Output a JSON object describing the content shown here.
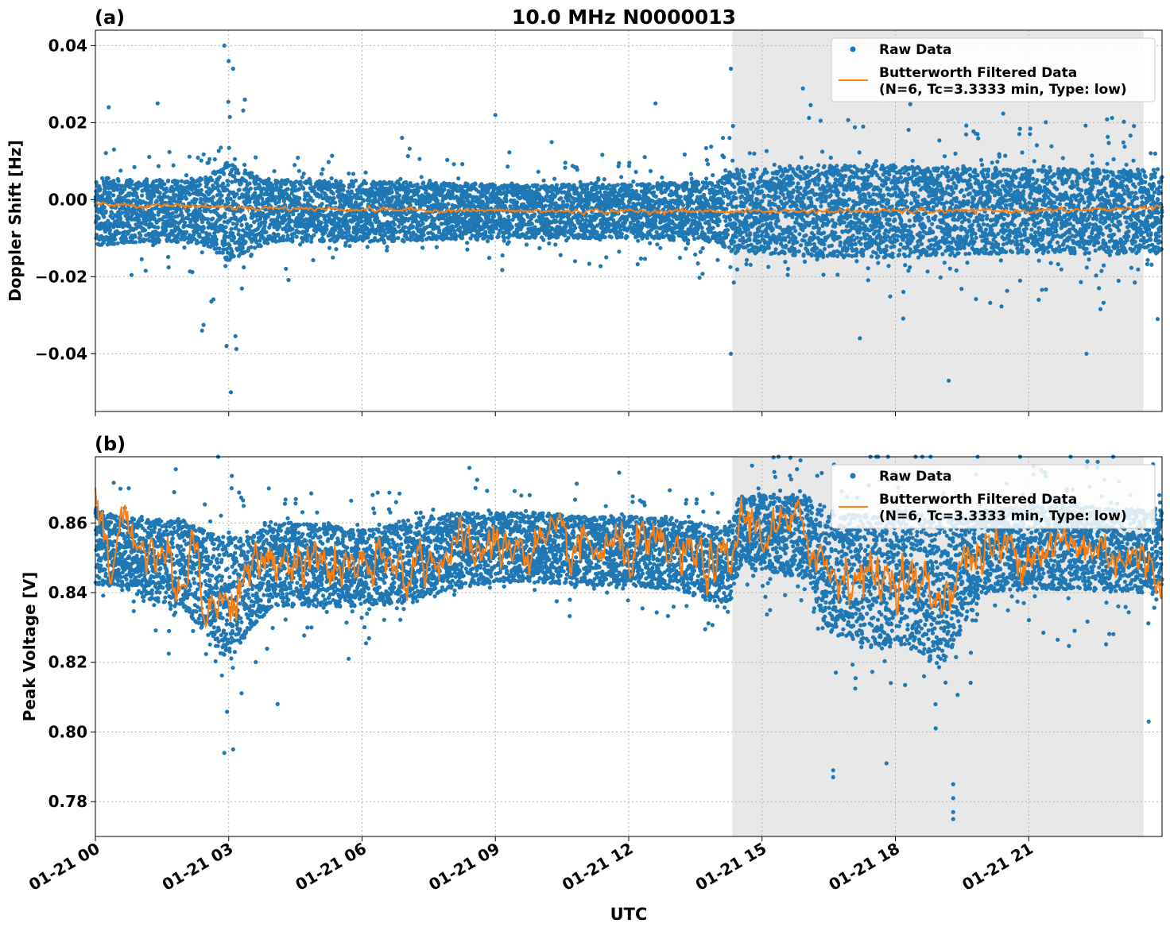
{
  "figure": {
    "title": "10.0 MHz N0000013",
    "xlabel": "UTC"
  },
  "chart_data": [
    {
      "panel_label": "(a)",
      "type": "scatter",
      "title": "10.0 MHz N0000013",
      "xlabel": "",
      "ylabel": "Doppler Shift [Hz]",
      "x_range": [
        "2025-01-21T00:00",
        "2025-01-22T00:00"
      ],
      "ylim": [
        -0.055,
        0.044
      ],
      "yticks": [
        0.04,
        0.02,
        0.0,
        -0.02,
        -0.04
      ],
      "ytick_labels": [
        "0.04",
        "0.02",
        "0.00",
        "−0.02",
        "−0.04"
      ],
      "xticks": [
        "2025-01-21T00:00",
        "2025-01-21T03:00",
        "2025-01-21T06:00",
        "2025-01-21T09:00",
        "2025-01-21T12:00",
        "2025-01-21T15:00",
        "2025-01-21T18:00",
        "2025-01-21T21:00"
      ],
      "grid": true,
      "legend_position": "top-right",
      "shaded_region": {
        "x_start": "2025-01-21T14:20",
        "x_end": "2025-01-21T23:35",
        "color": "#e8e8e8"
      },
      "series": [
        {
          "name": "Raw Data",
          "kind": "scatter",
          "color": "#1f77b4",
          "hours": [
            0.0,
            1.0,
            2.0,
            2.5,
            3.0,
            3.5,
            4.0,
            6.0,
            9.0,
            12.0,
            14.0,
            14.3,
            15.0,
            16.5,
            18.0,
            20.0,
            22.0,
            24.0
          ],
          "center": [
            -0.003,
            -0.003,
            -0.003,
            -0.003,
            -0.003,
            -0.003,
            -0.003,
            -0.003,
            -0.003,
            -0.003,
            -0.003,
            -0.003,
            -0.003,
            -0.003,
            -0.003,
            -0.003,
            -0.003,
            -0.003
          ],
          "core_halfwidth": [
            0.009,
            0.008,
            0.008,
            0.009,
            0.013,
            0.01,
            0.008,
            0.008,
            0.007,
            0.007,
            0.008,
            0.011,
            0.011,
            0.012,
            0.012,
            0.011,
            0.011,
            0.011
          ],
          "outer_halfwidth": [
            0.016,
            0.014,
            0.015,
            0.02,
            0.03,
            0.018,
            0.013,
            0.013,
            0.012,
            0.012,
            0.014,
            0.02,
            0.02,
            0.022,
            0.022,
            0.021,
            0.02,
            0.02
          ],
          "outliers": [
            {
              "x": 2.9,
              "y": 0.04
            },
            {
              "x": 3.0,
              "y": 0.036
            },
            {
              "x": 3.1,
              "y": 0.034
            },
            {
              "x": 3.05,
              "y": -0.05
            },
            {
              "x": 2.95,
              "y": -0.038
            },
            {
              "x": 2.4,
              "y": -0.034
            },
            {
              "x": 14.3,
              "y": 0.034
            },
            {
              "x": 14.3,
              "y": -0.04
            },
            {
              "x": 19.2,
              "y": -0.047
            },
            {
              "x": 22.3,
              "y": -0.04
            },
            {
              "x": 1.4,
              "y": 0.025
            },
            {
              "x": 0.3,
              "y": 0.024
            },
            {
              "x": 9.0,
              "y": 0.022
            },
            {
              "x": 12.6,
              "y": 0.025
            },
            {
              "x": 17.2,
              "y": -0.036
            },
            {
              "x": 23.9,
              "y": -0.031
            }
          ]
        },
        {
          "name": "Butterworth Filtered Data\n(N=6, Tc=3.3333 min, Type: low)",
          "kind": "line",
          "color": "#ff7f0e",
          "hours": [
            0.0,
            1.0,
            2.0,
            3.0,
            4.0,
            6.0,
            8.0,
            10.0,
            12.0,
            14.0,
            16.0,
            18.0,
            20.0,
            22.0,
            24.0
          ],
          "values": [
            -0.001,
            -0.0015,
            -0.0015,
            -0.002,
            -0.0022,
            -0.0025,
            -0.0028,
            -0.003,
            -0.003,
            -0.003,
            -0.003,
            -0.003,
            -0.003,
            -0.0028,
            -0.002
          ],
          "noise": 0.0005
        }
      ]
    },
    {
      "panel_label": "(b)",
      "type": "scatter",
      "title": "",
      "xlabel": "UTC",
      "ylabel": "Peak Voltage [V]",
      "x_range": [
        "2025-01-21T00:00",
        "2025-01-22T00:00"
      ],
      "ylim": [
        0.77,
        0.879
      ],
      "yticks": [
        0.86,
        0.84,
        0.82,
        0.8,
        0.78
      ],
      "ytick_labels": [
        "0.86",
        "0.84",
        "0.82",
        "0.80",
        "0.78"
      ],
      "xticks": [
        "2025-01-21T00:00",
        "2025-01-21T03:00",
        "2025-01-21T06:00",
        "2025-01-21T09:00",
        "2025-01-21T12:00",
        "2025-01-21T15:00",
        "2025-01-21T18:00",
        "2025-01-21T21:00"
      ],
      "xtick_labels": [
        "01-21 00",
        "01-21 03",
        "01-21 06",
        "01-21 09",
        "01-21 12",
        "01-21 15",
        "01-21 18",
        "01-21 21"
      ],
      "grid": true,
      "legend_position": "top-right",
      "shaded_region": {
        "x_start": "2025-01-21T14:20",
        "x_end": "2025-01-21T23:35",
        "color": "#e8e8e8"
      },
      "series": [
        {
          "name": "Raw Data",
          "kind": "scatter",
          "color": "#1f77b4",
          "hours": [
            0.0,
            0.5,
            1.0,
            1.5,
            2.0,
            2.5,
            3.0,
            3.5,
            4.0,
            5.0,
            6.0,
            7.0,
            8.0,
            9.0,
            10.0,
            11.0,
            12.0,
            13.0,
            14.0,
            14.3,
            14.5,
            15.0,
            16.0,
            16.5,
            17.0,
            17.5,
            18.0,
            18.5,
            19.0,
            19.5,
            20.0,
            21.0,
            22.0,
            23.0,
            24.0
          ],
          "center": [
            0.853,
            0.852,
            0.85,
            0.849,
            0.848,
            0.843,
            0.838,
            0.843,
            0.848,
            0.848,
            0.847,
            0.849,
            0.852,
            0.853,
            0.853,
            0.852,
            0.852,
            0.851,
            0.848,
            0.848,
            0.858,
            0.857,
            0.856,
            0.846,
            0.845,
            0.843,
            0.845,
            0.843,
            0.84,
            0.846,
            0.852,
            0.853,
            0.853,
            0.852,
            0.852
          ],
          "core_halfwidth": [
            0.011,
            0.01,
            0.011,
            0.012,
            0.013,
            0.015,
            0.018,
            0.013,
            0.012,
            0.012,
            0.011,
            0.012,
            0.011,
            0.01,
            0.01,
            0.01,
            0.01,
            0.01,
            0.011,
            0.011,
            0.01,
            0.011,
            0.012,
            0.018,
            0.018,
            0.019,
            0.019,
            0.02,
            0.022,
            0.016,
            0.012,
            0.012,
            0.012,
            0.012,
            0.012
          ],
          "outer_halfwidth": [
            0.018,
            0.018,
            0.02,
            0.02,
            0.022,
            0.026,
            0.035,
            0.022,
            0.018,
            0.018,
            0.017,
            0.018,
            0.016,
            0.015,
            0.015,
            0.015,
            0.015,
            0.015,
            0.018,
            0.018,
            0.016,
            0.018,
            0.02,
            0.04,
            0.04,
            0.042,
            0.04,
            0.042,
            0.05,
            0.03,
            0.022,
            0.022,
            0.024,
            0.024,
            0.022
          ],
          "outliers": [
            {
              "x": 2.9,
              "y": 0.794
            },
            {
              "x": 3.1,
              "y": 0.795
            },
            {
              "x": 16.6,
              "y": 0.787
            },
            {
              "x": 16.6,
              "y": 0.789
            },
            {
              "x": 17.8,
              "y": 0.791
            },
            {
              "x": 19.3,
              "y": 0.775
            },
            {
              "x": 19.3,
              "y": 0.777
            },
            {
              "x": 19.3,
              "y": 0.781
            },
            {
              "x": 19.3,
              "y": 0.785
            },
            {
              "x": 5.7,
              "y": 0.821
            },
            {
              "x": 4.1,
              "y": 0.808
            },
            {
              "x": 23.7,
              "y": 0.803
            }
          ]
        },
        {
          "name": "Butterworth Filtered Data\n(N=6, Tc=3.3333 min, Type: low)",
          "kind": "line",
          "color": "#ff7f0e",
          "hours": [
            0.0,
            0.3,
            0.6,
            1.0,
            1.5,
            2.0,
            2.2,
            2.5,
            3.0,
            3.5,
            4.0,
            5.0,
            6.0,
            7.0,
            8.0,
            9.0,
            10.0,
            11.0,
            12.0,
            13.0,
            14.0,
            14.3,
            14.5,
            15.0,
            16.0,
            16.5,
            17.0,
            17.5,
            18.0,
            18.5,
            19.0,
            19.5,
            20.0,
            21.0,
            22.0,
            23.0,
            24.0
          ],
          "values": [
            0.866,
            0.845,
            0.86,
            0.855,
            0.85,
            0.84,
            0.86,
            0.835,
            0.838,
            0.845,
            0.85,
            0.848,
            0.846,
            0.847,
            0.852,
            0.853,
            0.853,
            0.852,
            0.852,
            0.851,
            0.848,
            0.846,
            0.862,
            0.858,
            0.858,
            0.846,
            0.846,
            0.844,
            0.846,
            0.842,
            0.838,
            0.848,
            0.852,
            0.853,
            0.853,
            0.852,
            0.845
          ],
          "noise": 0.006
        }
      ]
    }
  ]
}
